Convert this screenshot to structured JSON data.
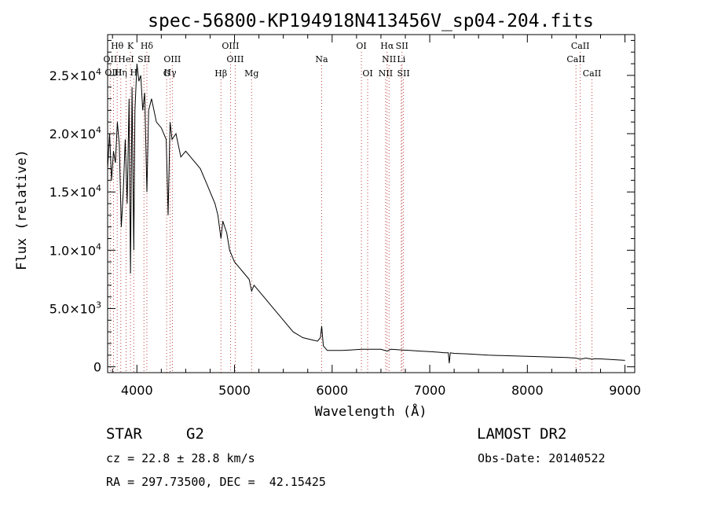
{
  "chart_data": {
    "type": "line",
    "title": "spec-56800-KP194918N413456V_sp04-204.fits",
    "xlabel": "Wavelength (Å)",
    "ylabel": "Flux (relative)",
    "xlim": [
      3700,
      9100
    ],
    "ylim": [
      -500,
      28500
    ],
    "x_ticks": [
      4000,
      5000,
      6000,
      7000,
      8000,
      9000
    ],
    "x_tick_labels": [
      "4000",
      "5000",
      "6000",
      "7000",
      "8000",
      "9000"
    ],
    "y_ticks": [
      0,
      5000,
      10000,
      15000,
      20000,
      25000
    ],
    "y_tick_labels": [
      {
        "mant": "0",
        "exp": ""
      },
      {
        "mant": "5.0×10",
        "exp": "3"
      },
      {
        "mant": "1.0×10",
        "exp": "4"
      },
      {
        "mant": "1.5×10",
        "exp": "4"
      },
      {
        "mant": "2.0×10",
        "exp": "4"
      },
      {
        "mant": "2.5×10",
        "exp": "4"
      }
    ],
    "series": [
      {
        "x": [
          3700,
          3720,
          3740,
          3760,
          3780,
          3800,
          3820,
          3840,
          3860,
          3880,
          3900,
          3920,
          3934,
          3950,
          3968,
          3980,
          4000,
          4020,
          4040,
          4060,
          4080,
          4102,
          4120,
          4150,
          4200,
          4250,
          4300,
          4320,
          4340,
          4360,
          4400,
          4450,
          4500,
          4550,
          4600,
          4650,
          4700,
          4750,
          4800,
          4830,
          4861,
          4880,
          4920,
          4950,
          5000,
          5050,
          5100,
          5150,
          5175,
          5200,
          5300,
          5400,
          5500,
          5600,
          5700,
          5800,
          5850,
          5880,
          5893,
          5910,
          5950,
          6000,
          6100,
          6200,
          6300,
          6400,
          6500,
          6563,
          6600,
          6700,
          6800,
          6900,
          7000,
          7100,
          7150,
          7190,
          7200,
          7210,
          7250,
          7400,
          7600,
          7800,
          8000,
          8200,
          8400,
          8500,
          8542,
          8600,
          8662,
          8700,
          8800,
          9000
        ],
        "y": [
          17000,
          20000,
          16000,
          18500,
          17500,
          21000,
          19000,
          12000,
          15000,
          19500,
          14000,
          23000,
          8000,
          24000,
          10000,
          22000,
          26000,
          24500,
          25000,
          22000,
          23500,
          15000,
          22000,
          23000,
          21000,
          20500,
          19500,
          13000,
          21000,
          19500,
          20000,
          18000,
          18500,
          18000,
          17500,
          17000,
          16000,
          15000,
          14000,
          13000,
          11000,
          12500,
          11500,
          10000,
          9000,
          8500,
          8000,
          7500,
          6500,
          7000,
          6000,
          5000,
          4000,
          3000,
          2500,
          2300,
          2200,
          2500,
          3500,
          1800,
          1400,
          1400,
          1400,
          1450,
          1500,
          1500,
          1500,
          1350,
          1500,
          1450,
          1400,
          1350,
          1300,
          1250,
          1200,
          1200,
          300,
          1200,
          1150,
          1100,
          1000,
          950,
          900,
          850,
          800,
          750,
          650,
          750,
          650,
          700,
          650,
          550
        ]
      }
    ],
    "lines_top": [
      {
        "label": "Hθ",
        "w": 3798,
        "row": 0
      },
      {
        "label": "K",
        "w": 3934,
        "row": 0
      },
      {
        "label": "Hδ",
        "w": 4102,
        "row": 0
      },
      {
        "label": "OIII",
        "w": 4363,
        "row": 1
      },
      {
        "label": "OIII",
        "w": 4959,
        "row": 0
      },
      {
        "label": "OI",
        "w": 6300,
        "row": 0
      },
      {
        "label": "Hα",
        "w": 6563,
        "row": 0
      },
      {
        "label": "SII",
        "w": 6716,
        "row": 0
      },
      {
        "label": "CaII",
        "w": 8542,
        "row": 0
      },
      {
        "label": "OII",
        "w": 3727,
        "row": 1
      },
      {
        "label": "HeI",
        "w": 3889,
        "row": 1
      },
      {
        "label": "SII",
        "w": 4072,
        "row": 1
      },
      {
        "label": "Hγ",
        "w": 4340,
        "row": 2
      },
      {
        "label": "OIII",
        "w": 5007,
        "row": 1
      },
      {
        "label": "Na",
        "w": 5893,
        "row": 1
      },
      {
        "label": "NII",
        "w": 6583,
        "row": 1
      },
      {
        "label": "Li",
        "w": 6708,
        "row": 1
      },
      {
        "label": "CaII",
        "w": 8498,
        "row": 1
      },
      {
        "label": "OIII",
        "w": 3760,
        "row": 2
      },
      {
        "label": "Hη",
        "w": 3835,
        "row": 2
      },
      {
        "label": "H",
        "w": 3968,
        "row": 2
      },
      {
        "label": "G",
        "w": 4305,
        "row": 3
      },
      {
        "label": "Hβ",
        "w": 4861,
        "row": 3
      },
      {
        "label": "Mg",
        "w": 5175,
        "row": 3
      },
      {
        "label": "OI",
        "w": 6364,
        "row": 3
      },
      {
        "label": "NII",
        "w": 6548,
        "row": 3
      },
      {
        "label": "SII",
        "w": 6731,
        "row": 3
      },
      {
        "label": "CaII",
        "w": 8662,
        "row": 3
      }
    ]
  },
  "footer": {
    "class_label": "STAR",
    "subclass": "G2",
    "survey": "LAMOST DR2",
    "cz": "cz = 22.8 ± 28.8 km/s",
    "obs_date": "Obs-Date: 20140522",
    "coords": "RA = 297.73500, DEC =  42.15425"
  }
}
